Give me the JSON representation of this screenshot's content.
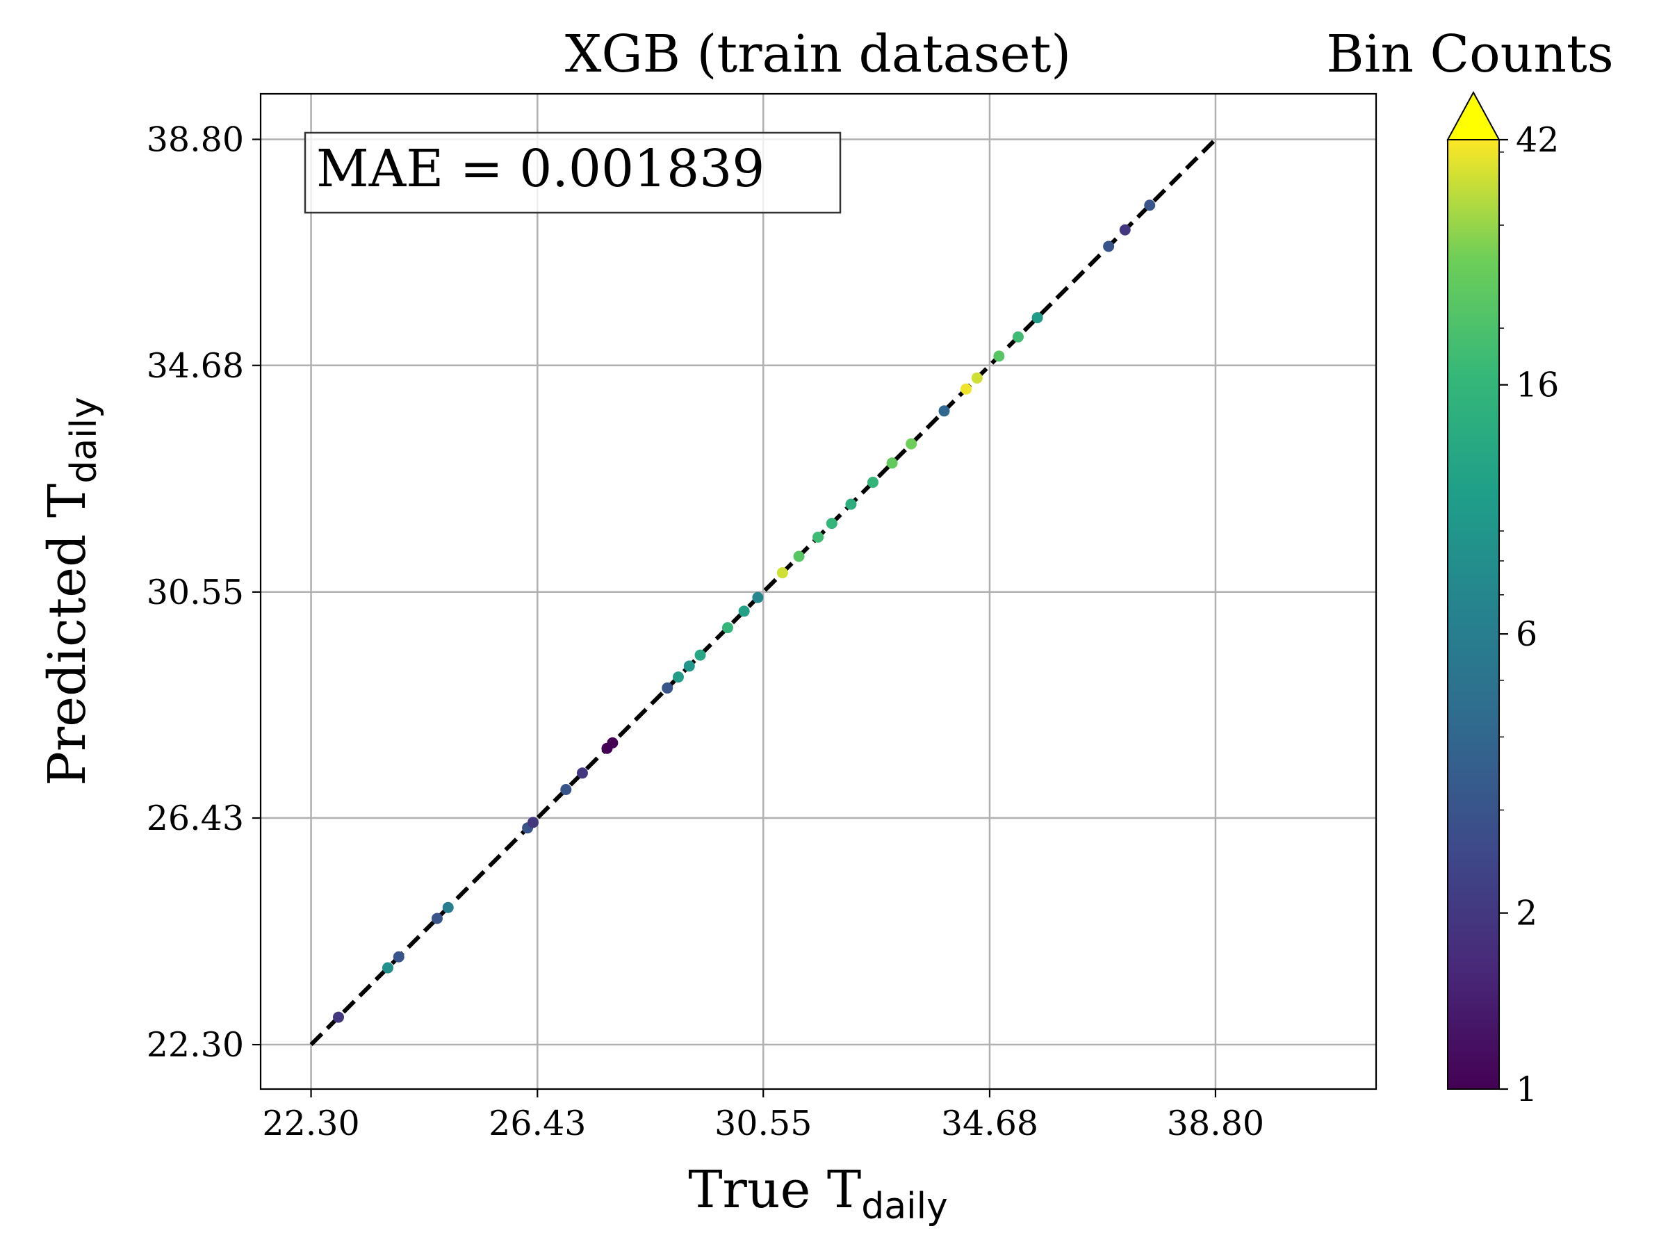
{
  "chart_data": {
    "type": "scatter",
    "title": "XGB (train dataset)",
    "xlabel": {
      "main": "True T",
      "sub": "daily"
    },
    "ylabel": {
      "main": "Predicted T",
      "sub": "daily"
    },
    "xlim": [
      21.38,
      41.73
    ],
    "ylim": [
      21.49,
      39.63
    ],
    "xticks": [
      "22.30",
      "26.43",
      "30.55",
      "34.68",
      "38.80"
    ],
    "yticks": [
      "22.30",
      "26.43",
      "30.55",
      "34.68",
      "38.80"
    ],
    "grid": true,
    "reference_line": {
      "style": "dashed",
      "color": "#000000",
      "from": [
        22.3,
        22.3
      ],
      "to": [
        38.8,
        38.8
      ]
    },
    "annotation": "MAE = 0.001839",
    "colorbar": {
      "title": "Bin Counts",
      "scale": "log",
      "min": 1,
      "max": 42,
      "extend": "max",
      "ticks": [
        "42",
        "16",
        "6",
        "2",
        "1"
      ],
      "colormap": "viridis"
    },
    "points": [
      {
        "x": 22.8,
        "y": 22.8,
        "count": 2
      },
      {
        "x": 23.7,
        "y": 23.7,
        "count": 8
      },
      {
        "x": 23.9,
        "y": 23.9,
        "count": 3
      },
      {
        "x": 24.6,
        "y": 24.6,
        "count": 3
      },
      {
        "x": 24.8,
        "y": 24.8,
        "count": 6
      },
      {
        "x": 26.25,
        "y": 26.25,
        "count": 3
      },
      {
        "x": 26.35,
        "y": 26.35,
        "count": 2
      },
      {
        "x": 26.95,
        "y": 26.95,
        "count": 3
      },
      {
        "x": 27.25,
        "y": 27.25,
        "count": 2
      },
      {
        "x": 27.7,
        "y": 27.7,
        "count": 1
      },
      {
        "x": 27.8,
        "y": 27.8,
        "count": 1
      },
      {
        "x": 28.8,
        "y": 28.8,
        "count": 3
      },
      {
        "x": 29.0,
        "y": 29.0,
        "count": 10
      },
      {
        "x": 29.2,
        "y": 29.2,
        "count": 9
      },
      {
        "x": 29.4,
        "y": 29.4,
        "count": 12
      },
      {
        "x": 29.9,
        "y": 29.9,
        "count": 16
      },
      {
        "x": 30.2,
        "y": 30.2,
        "count": 11
      },
      {
        "x": 30.45,
        "y": 30.45,
        "count": 7
      },
      {
        "x": 30.9,
        "y": 30.9,
        "count": 36
      },
      {
        "x": 31.2,
        "y": 31.2,
        "count": 22
      },
      {
        "x": 31.55,
        "y": 31.55,
        "count": 18
      },
      {
        "x": 31.8,
        "y": 31.8,
        "count": 16
      },
      {
        "x": 32.15,
        "y": 32.15,
        "count": 14
      },
      {
        "x": 32.55,
        "y": 32.55,
        "count": 16
      },
      {
        "x": 32.9,
        "y": 32.9,
        "count": 24
      },
      {
        "x": 33.25,
        "y": 33.25,
        "count": 26
      },
      {
        "x": 33.85,
        "y": 33.85,
        "count": 4
      },
      {
        "x": 34.25,
        "y": 34.25,
        "count": 40
      },
      {
        "x": 34.45,
        "y": 34.45,
        "count": 36
      },
      {
        "x": 34.85,
        "y": 34.85,
        "count": 22
      },
      {
        "x": 35.2,
        "y": 35.2,
        "count": 18
      },
      {
        "x": 35.55,
        "y": 35.55,
        "count": 10
      },
      {
        "x": 36.85,
        "y": 36.85,
        "count": 3
      },
      {
        "x": 37.15,
        "y": 37.15,
        "count": 2
      },
      {
        "x": 37.6,
        "y": 37.6,
        "count": 3
      }
    ]
  }
}
